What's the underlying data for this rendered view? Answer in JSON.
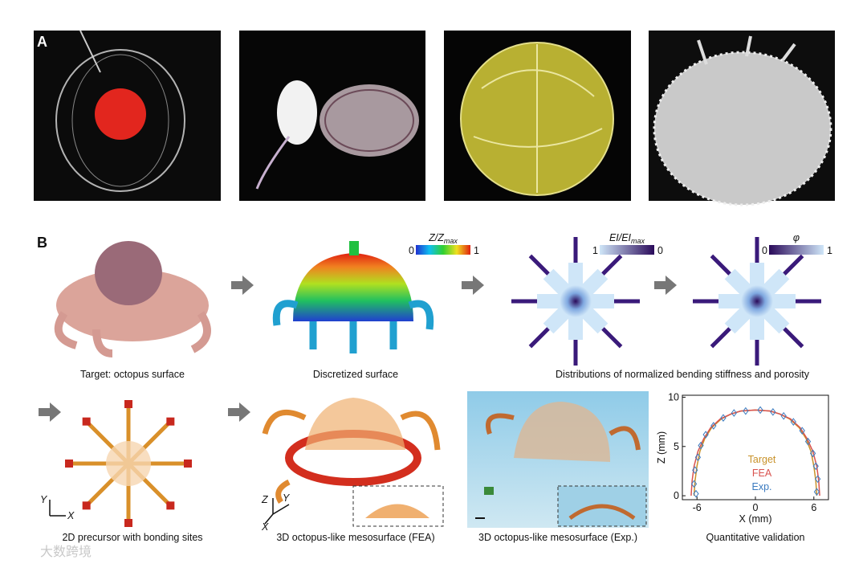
{
  "panel_a": {
    "label": "A"
  },
  "panel_b": {
    "label": "B",
    "captions": [
      "Target: octopus surface",
      "Discretized surface",
      "Distributions of normalized bending stiffness and porosity",
      "2D precursor with bonding sites",
      "3D octopus-like mesosurface (FEA)",
      "3D octopus-like mesosurface (Exp.)"
    ],
    "colorbars": [
      {
        "label_main": "Z/Z",
        "label_sub": "max",
        "left": "0",
        "right": "1"
      },
      {
        "label_main": "EI/EI",
        "label_sub": "max",
        "left": "1",
        "right": "0"
      },
      {
        "label_main": "φ",
        "label_sub": "",
        "left": "0",
        "right": "1"
      }
    ],
    "axes_2d": [
      "Y",
      "X"
    ],
    "axes_3d": [
      "Z",
      "Y",
      "X"
    ]
  },
  "chart_data": {
    "type": "line",
    "title": "Quantitative validation",
    "x_label": "X (mm)",
    "y_label": "Z (mm)",
    "xlim": [
      -7.5,
      7.5
    ],
    "ylim": [
      -0.4,
      10.2
    ],
    "xticks": [
      -6,
      0,
      6
    ],
    "yticks": [
      0,
      5,
      10
    ],
    "series": [
      {
        "name": "Target",
        "color": "#c8922a",
        "style": "line",
        "x": [
          -6.3,
          -6.2,
          -6,
          -5.7,
          -5.2,
          -4.5,
          -3.5,
          -2.5,
          -1.5,
          0,
          1.5,
          2.5,
          3.5,
          4.5,
          5.2,
          5.7,
          6,
          6.2,
          6.3
        ],
        "values": [
          0,
          1.5,
          3,
          4.5,
          5.8,
          6.9,
          7.8,
          8.3,
          8.6,
          8.7,
          8.6,
          8.3,
          7.8,
          6.9,
          5.8,
          4.5,
          3,
          1.5,
          0
        ]
      },
      {
        "name": "FEA",
        "color": "#d9534f",
        "style": "line",
        "x": [
          -6.6,
          -6.5,
          -6.3,
          -5.9,
          -5.3,
          -4.6,
          -3.6,
          -2.5,
          -1.5,
          0,
          1.5,
          2.5,
          3.6,
          4.6,
          5.3,
          5.9,
          6.3,
          6.5,
          6.6
        ],
        "values": [
          0,
          1.5,
          3,
          4.5,
          5.8,
          6.9,
          7.8,
          8.3,
          8.6,
          8.7,
          8.6,
          8.3,
          7.8,
          6.9,
          5.8,
          4.5,
          3,
          1.5,
          0
        ]
      },
      {
        "name": "Exp.",
        "color": "#3a7abf",
        "style": "markers",
        "x": [
          -6.1,
          -6.3,
          -6.2,
          -5.9,
          -5.6,
          -5.1,
          -4.3,
          -3.3,
          -2.2,
          -1,
          0.5,
          1.8,
          2.9,
          3.9,
          4.8,
          5.4,
          5.9,
          6.2,
          6.4,
          6.3
        ],
        "values": [
          0.2,
          1.2,
          2.6,
          3.9,
          5.1,
          6.2,
          7.1,
          7.9,
          8.4,
          8.6,
          8.7,
          8.5,
          8.1,
          7.5,
          6.6,
          5.5,
          4.3,
          3,
          1.7,
          0.4
        ]
      }
    ]
  },
  "watermark": "大数跨境"
}
